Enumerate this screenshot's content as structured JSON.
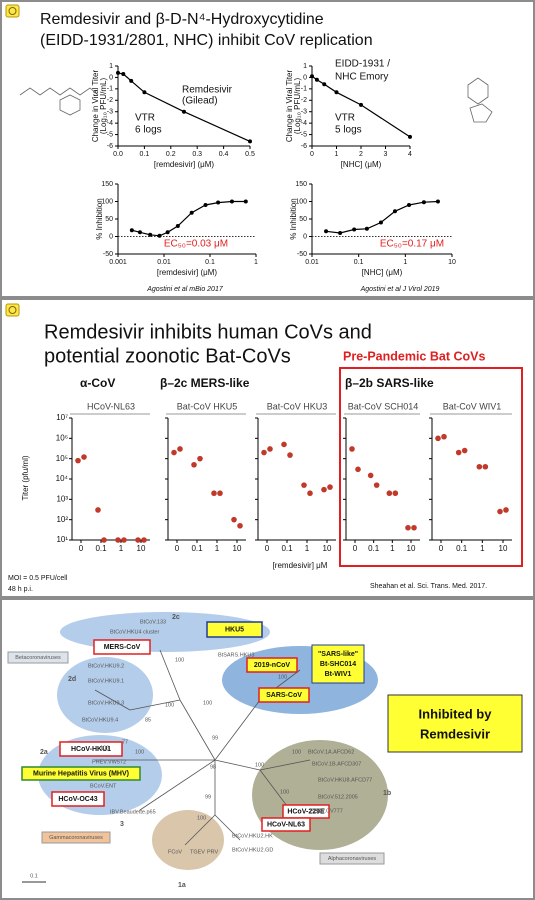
{
  "slide1": {
    "title": [
      "Remdesivir and β-D-N⁴-Hydroxycytidine",
      "(EIDD-1931/2801, NHC) inhibit CoV replication"
    ],
    "citations": [
      "Agostini et al mBio 2017",
      "Agostini et al J Virol 2019"
    ]
  },
  "slide2": {
    "title": [
      "Remdesivir inhibits human CoVs and",
      "potential zoonotic  Bat-CoVs"
    ],
    "highlight": "Pre-Pandemic Bat CoVs",
    "groups": [
      "α-CoV",
      "β–2c MERS-like",
      "β–2b SARS-like"
    ],
    "ylabel": "Titer (pfu/ml)",
    "xlabel": "[remdesivir] μM",
    "notes": [
      "MOI = 0.5 PFU/cell",
      "48 h p.i."
    ],
    "citation": "Sheahan et al. Sci. Trans. Med. 2017."
  },
  "slide3": {
    "boxes": [
      "MERS-CoV",
      "HKU5",
      "2019-nCoV",
      "SARS-CoV",
      "HCoV-HKU1",
      "Murine Hepatitis Virus (MHV)",
      "HCoV-OC43",
      "HCoV-229E",
      "HCoV-NL63"
    ],
    "sars_like": [
      "\"SARS-like\"",
      "Bt-SHC014",
      "Bt-WIV1"
    ],
    "groups": [
      "Betacoronaviruses",
      "Gammacoronaviruses",
      "Alphacoronaviruses"
    ],
    "clades": [
      "2c",
      "2d",
      "2a",
      "1b",
      "1a",
      "3"
    ],
    "leaves": [
      "BtCoV.133",
      "BtCoV.HKU4 cluster",
      "BtCoV.HKU9.2",
      "BtCoV.HKU9.1",
      "BtCoV.HKU9.3",
      "BtCoV.HKU9.4",
      "BtSARS.HKU3",
      "BtCoV.1A.AFCD62",
      "BtCoV.1B.AFCD307",
      "BtCoV.HKU8.AFCD77",
      "BtCoV.512.2005",
      "PEDV.CV777",
      "BtCoV.HKU2.HK",
      "BtCoV.HKU2.GD",
      "FCoV",
      "TGEV",
      "PRV",
      "IBV.Beaudette.p65",
      "PHEV.VW572",
      "BCoV.ENT"
    ],
    "bootstrap": [
      "100",
      "100",
      "85",
      "100",
      "100",
      "100",
      "77",
      "100",
      "99",
      "98",
      "100",
      "100",
      "99",
      "100",
      "100"
    ],
    "scale": "0.1",
    "legend": [
      "Inhibited by",
      "Remdesivir"
    ]
  },
  "chart_data": [
    {
      "type": "line",
      "ylabel": [
        "Change in Viral Titer",
        "(Log₁₀ PFU/mL)"
      ],
      "xlabel": "[remdesivir] (μM)",
      "x": [
        0,
        0.02,
        0.05,
        0.1,
        0.25,
        0.5
      ],
      "values": [
        0.4,
        0.3,
        -0.3,
        -1.3,
        -3,
        -5.6
      ],
      "color": "#000000",
      "xlim": [
        0,
        0.5
      ],
      "xticks": [
        {
          "value": 0,
          "label": "0.0"
        },
        0.1,
        0.2,
        0.3,
        0.4,
        0.5
      ],
      "ylim": [
        -6,
        1
      ],
      "yticks": [
        1,
        0,
        -1,
        -2,
        -3,
        -4,
        -5,
        -6
      ],
      "annotations": [
        "Remdesivir",
        "(Gilead)",
        "VTR",
        "6 logs"
      ]
    },
    {
      "type": "line",
      "ylabel": [
        "Change in Viral Titer",
        "(Log₁₀ PFU/mL)"
      ],
      "xlabel": "[NHC] (μM)",
      "x": [
        0,
        0.2,
        0.5,
        1,
        2,
        4
      ],
      "values": [
        0.1,
        -0.2,
        -0.6,
        -1.3,
        -2.4,
        -5.2
      ],
      "color": "#000000",
      "xlim": [
        0,
        4
      ],
      "xticks": [
        0,
        1,
        2,
        3,
        4
      ],
      "ylim": [
        -6,
        1
      ],
      "yticks": [
        1,
        0,
        -1,
        -2,
        -3,
        -4,
        -5,
        -6
      ],
      "annotations": [
        "EIDD-1931 /",
        "NHC  Emory",
        "VTR",
        "5 logs"
      ]
    },
    {
      "type": "line",
      "xscale": "log",
      "ylabel": "% Inhibition",
      "xlabel": "[remdesivir] (μM)",
      "x": [
        0.002,
        0.003,
        0.005,
        0.008,
        0.012,
        0.02,
        0.04,
        0.08,
        0.15,
        0.3,
        0.6
      ],
      "values": [
        18,
        12,
        5,
        2,
        12,
        30,
        68,
        90,
        97,
        100,
        100
      ],
      "color": "#000000",
      "xlim": [
        0.001,
        1
      ],
      "xticks": [
        0.001,
        0.01,
        0.1,
        1
      ],
      "ylim": [
        -50,
        150
      ],
      "yticks": [
        -50,
        0,
        50,
        100,
        150
      ],
      "hline": 0,
      "annotations": [
        "EC₅₀=0.03 μM"
      ],
      "annotation_color": "#e02020"
    },
    {
      "type": "line",
      "xscale": "log",
      "ylabel": "% Inhibition",
      "xlabel": "[NHC] (μM)",
      "x": [
        0.02,
        0.04,
        0.08,
        0.15,
        0.3,
        0.6,
        1.2,
        2.5,
        5
      ],
      "values": [
        15,
        10,
        20,
        22,
        40,
        72,
        90,
        98,
        100
      ],
      "color": "#000000",
      "xlim": [
        0.01,
        10
      ],
      "xticks": [
        0.01,
        0.1,
        1,
        10
      ],
      "ylim": [
        -50,
        150
      ],
      "yticks": [
        -50,
        0,
        50,
        100,
        150
      ],
      "hline": 0,
      "annotations": [
        "EC₅₀=0.17 μM"
      ],
      "annotation_color": "#e02020"
    },
    {
      "type": "scatter",
      "title": "HCoV-NL63",
      "categories": [
        "0",
        "0.1",
        "1",
        "10"
      ],
      "values": [
        [
          80000,
          120000
        ],
        [
          300,
          10
        ],
        [
          10,
          10
        ],
        [
          10,
          10
        ]
      ],
      "color": "#c0392b",
      "yscale": "log",
      "ylim": [
        10,
        10000000
      ],
      "yticks": [
        {
          "value": 10,
          "label": "10¹"
        },
        {
          "value": 100,
          "label": "10²"
        },
        {
          "value": 1000,
          "label": "10³"
        },
        {
          "value": 10000,
          "label": "10⁴"
        },
        {
          "value": 100000,
          "label": "10⁵"
        },
        {
          "value": 1000000,
          "label": "10⁶"
        },
        {
          "value": 10000000,
          "label": "10⁷"
        }
      ]
    },
    {
      "type": "scatter",
      "title": "Bat-CoV HKU5",
      "categories": [
        "0",
        "0.1",
        "1",
        "10"
      ],
      "values": [
        [
          200000,
          300000
        ],
        [
          50000,
          100000
        ],
        [
          2000,
          2000
        ],
        [
          100,
          50
        ]
      ],
      "color": "#c0392b",
      "yscale": "log",
      "ylim": [
        10,
        10000000
      ],
      "yticks": [
        10,
        100,
        1000,
        10000,
        100000,
        1000000,
        10000000
      ]
    },
    {
      "type": "scatter",
      "title": "Bat-CoV HKU3",
      "categories": [
        "0",
        "0.1",
        "1",
        "10"
      ],
      "values": [
        [
          200000,
          300000
        ],
        [
          500000,
          150000
        ],
        [
          5000,
          2000
        ],
        [
          3000,
          4000
        ]
      ],
      "color": "#c0392b",
      "yscale": "log",
      "ylim": [
        10,
        10000000
      ],
      "yticks": [
        10,
        100,
        1000,
        10000,
        100000,
        1000000,
        10000000
      ]
    },
    {
      "type": "scatter",
      "title": "Bat-CoV SCH014",
      "categories": [
        "0",
        "0.1",
        "1",
        "10"
      ],
      "values": [
        [
          300000,
          30000
        ],
        [
          15000,
          5000
        ],
        [
          2000,
          2000
        ],
        [
          40,
          40
        ]
      ],
      "color": "#c0392b",
      "yscale": "log",
      "ylim": [
        10,
        10000000
      ],
      "yticks": [
        10,
        100,
        1000,
        10000,
        100000,
        1000000,
        10000000
      ]
    },
    {
      "type": "scatter",
      "title": "Bat-CoV WIV1",
      "categories": [
        "0",
        "0.1",
        "1",
        "10"
      ],
      "values": [
        [
          1000000,
          1200000
        ],
        [
          200000,
          250000
        ],
        [
          40000,
          40000
        ],
        [
          250,
          300
        ]
      ],
      "color": "#c0392b",
      "yscale": "log",
      "ylim": [
        10,
        10000000
      ],
      "yticks": [
        10,
        100,
        1000,
        10000,
        100000,
        1000000,
        10000000
      ]
    }
  ]
}
